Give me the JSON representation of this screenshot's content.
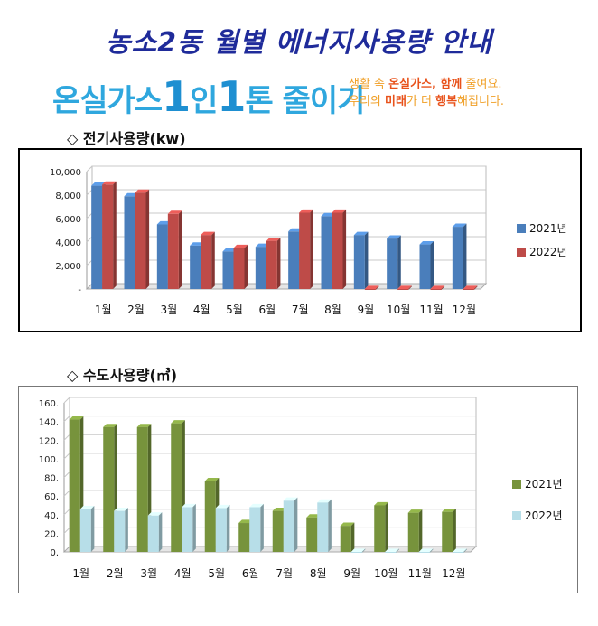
{
  "title": "농소2동 월별 에너지사용량 안내",
  "banner": {
    "main_pre": "온실가스",
    "main_one1": "1",
    "main_mid": "인",
    "main_one2": "1",
    "main_post": "톤 줄이기",
    "sub_line1_a": "생활 속 ",
    "sub_line1_b": "온실가스, 함께",
    "sub_line1_c": " 줄여요.",
    "sub_line2_a": "우리의 ",
    "sub_line2_b": "미래",
    "sub_line2_c": "가 더 ",
    "sub_line2_d": "행복",
    "sub_line2_e": "해집니다."
  },
  "chart_data": [
    {
      "type": "bar",
      "title": "◇ 전기사용량(kw)",
      "categories": [
        "1월",
        "2월",
        "3월",
        "4월",
        "5월",
        "6월",
        "7월",
        "8월",
        "9월",
        "10월",
        "11월",
        "12월"
      ],
      "series": [
        {
          "name": "2021년",
          "color": "#4a7ebb",
          "values": [
            8800,
            7900,
            5500,
            3700,
            3200,
            3600,
            4900,
            6200,
            4600,
            4300,
            3800,
            5300
          ]
        },
        {
          "name": "2022년",
          "color": "#be4b48",
          "values": [
            8900,
            8200,
            6400,
            4600,
            3500,
            4100,
            6500,
            6500,
            0,
            0,
            0,
            0
          ]
        }
      ],
      "yticks": [
        "-",
        "2,000",
        "4,000",
        "6,000",
        "8,000",
        "10,000"
      ],
      "ylim": [
        0,
        10000
      ],
      "grid": true,
      "legend": "right"
    },
    {
      "type": "bar",
      "title": "◇ 수도사용량(㎥)",
      "categories": [
        "1월",
        "2월",
        "3월",
        "4월",
        "5월",
        "6월",
        "7월",
        "8월",
        "9월",
        "10월",
        "11월",
        "12월"
      ],
      "series": [
        {
          "name": "2021년",
          "color": "#77933c",
          "values": [
            142,
            134,
            134,
            138,
            76,
            31,
            44,
            37,
            28,
            50,
            42,
            43
          ]
        },
        {
          "name": "2022년",
          "color": "#b7dee8",
          "values": [
            46,
            44,
            39,
            48,
            47,
            48,
            55,
            53,
            0,
            0,
            0,
            0
          ]
        }
      ],
      "yticks": [
        "0.",
        "20.",
        "40.",
        "60.",
        "80.",
        "100.",
        "120.",
        "140.",
        "160."
      ],
      "ylim": [
        0,
        160
      ],
      "grid": true,
      "legend": "right"
    }
  ]
}
